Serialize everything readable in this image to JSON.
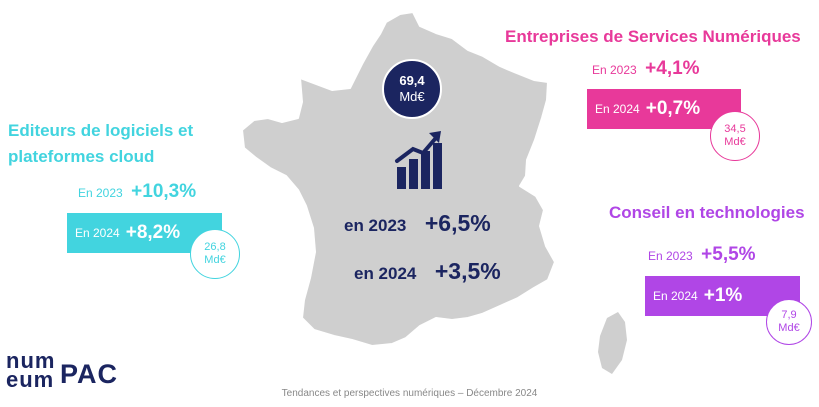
{
  "colors": {
    "navy": "#1b2560",
    "editeurs": "#42d4df",
    "esn": "#e8399a",
    "conseil": "#b046e6",
    "map": "#cfcfcf",
    "pac_red": "#e8452e"
  },
  "total": {
    "amount": "69,4",
    "unit": "Md€",
    "growth_2023_label": "en 2023",
    "growth_2023": "+6,5%",
    "growth_2024_label": "en 2024",
    "growth_2024": "+3,5%"
  },
  "editeurs": {
    "title_line1": "Editeurs de logiciels et",
    "title_line2": "plateformes cloud",
    "label_2023": "En 2023",
    "value_2023": "+10,3%",
    "label_2024": "En 2024",
    "value_2024": "+8,2%",
    "amount": "26,8",
    "unit": "Md€"
  },
  "esn": {
    "title": "Entreprises de Services Numériques",
    "label_2023": "En 2023",
    "value_2023": "+4,1%",
    "label_2024": "En 2024",
    "value_2024": "+0,7%",
    "amount": "34,5",
    "unit": "Md€"
  },
  "conseil": {
    "title": "Conseil en technologies",
    "label_2023": "En 2023",
    "value_2023": "+5,5%",
    "label_2024": "En 2024",
    "value_2024": "+1%",
    "amount": "7,9",
    "unit": "Md€"
  },
  "logos": {
    "numeum": "num eum",
    "pac": "PAC"
  },
  "footer": "Tendances et perspectives numériques – Décembre 2024",
  "icons": {
    "growth_chart": "growth-chart-icon",
    "map": "france-map"
  }
}
